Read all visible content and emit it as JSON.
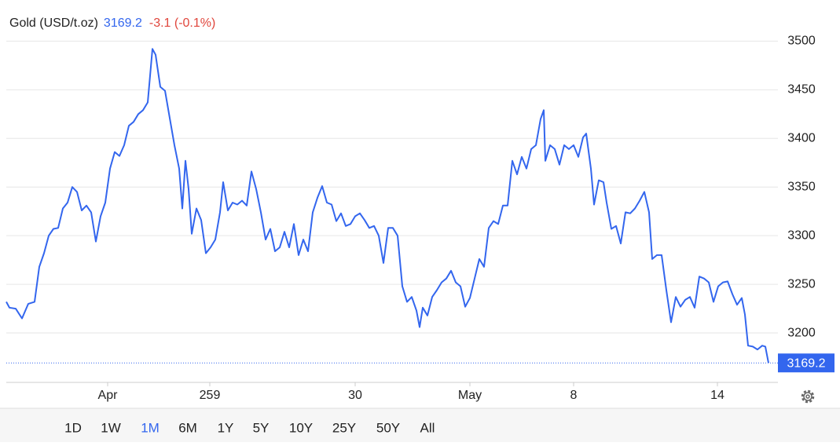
{
  "chart_data": {
    "type": "line",
    "title": "Gold (USD/t.oz)",
    "price": 3169.2,
    "change": "-3.1 (-0.1%)",
    "price_color": "#3366ee",
    "change_color": "#e0463c",
    "x": [
      0,
      4,
      12,
      20,
      28,
      36,
      42,
      48,
      54,
      60,
      66,
      72,
      78,
      84,
      90,
      96,
      102,
      108,
      114,
      120,
      126,
      132,
      138,
      144,
      150,
      156,
      162,
      168,
      174,
      180,
      186,
      190,
      196,
      202,
      208,
      214,
      220,
      224,
      228,
      232,
      236,
      242,
      248,
      254,
      260,
      266,
      272,
      276,
      282,
      288,
      294,
      300,
      306,
      312,
      318,
      324,
      330,
      336,
      342,
      348,
      354,
      360,
      366,
      372,
      378,
      384,
      390,
      396,
      402,
      408,
      414,
      420,
      426,
      432,
      438,
      444,
      450,
      456,
      462,
      468,
      474,
      480,
      486,
      492,
      498,
      504,
      510,
      516,
      522,
      526,
      530,
      536,
      542,
      548,
      554,
      560,
      566,
      572,
      578,
      584,
      590,
      596,
      602,
      608,
      614,
      620,
      626,
      632,
      638,
      644,
      650,
      656,
      662,
      668,
      674,
      680,
      684,
      686,
      692,
      698,
      704,
      710,
      716,
      722,
      728,
      734,
      738,
      744,
      748,
      754,
      760,
      764,
      770,
      776,
      782,
      788,
      794,
      800,
      806,
      812,
      818,
      822,
      828,
      834,
      840,
      846,
      852,
      858,
      864,
      870,
      876,
      882,
      888,
      894,
      900,
      906,
      912,
      918,
      924,
      930,
      936,
      940,
      944,
      950,
      956,
      962,
      966,
      970
    ],
    "series": [
      {
        "name": "Gold",
        "color": "#3366ee",
        "values": [
          3232,
          3226,
          3225,
          3215,
          3230,
          3232,
          3268,
          3282,
          3300,
          3307,
          3308,
          3328,
          3334,
          3350,
          3345,
          3326,
          3331,
          3324,
          3294,
          3320,
          3334,
          3369,
          3386,
          3382,
          3393,
          3413,
          3417,
          3425,
          3429,
          3437,
          3492,
          3486,
          3453,
          3449,
          3421,
          3393,
          3369,
          3328,
          3377,
          3348,
          3302,
          3328,
          3316,
          3282,
          3288,
          3296,
          3324,
          3355,
          3326,
          3334,
          3332,
          3336,
          3331,
          3366,
          3348,
          3324,
          3296,
          3307,
          3284,
          3288,
          3304,
          3288,
          3312,
          3280,
          3296,
          3284,
          3324,
          3339,
          3351,
          3334,
          3332,
          3315,
          3323,
          3310,
          3312,
          3320,
          3323,
          3316,
          3308,
          3310,
          3300,
          3272,
          3308,
          3308,
          3300,
          3248,
          3232,
          3237,
          3223,
          3206,
          3226,
          3218,
          3237,
          3244,
          3252,
          3256,
          3264,
          3252,
          3248,
          3227,
          3236,
          3256,
          3276,
          3268,
          3308,
          3315,
          3312,
          3331,
          3331,
          3377,
          3363,
          3381,
          3369,
          3389,
          3393,
          3420,
          3429,
          3377,
          3393,
          3389,
          3373,
          3393,
          3389,
          3393,
          3381,
          3401,
          3405,
          3369,
          3332,
          3357,
          3355,
          3334,
          3307,
          3310,
          3292,
          3324,
          3323,
          3328,
          3336,
          3345,
          3324,
          3276,
          3280,
          3280,
          3244,
          3211,
          3237,
          3227,
          3234,
          3237,
          3226,
          3258,
          3256,
          3252,
          3232,
          3248,
          3252,
          3253,
          3240,
          3229,
          3236,
          3219,
          3187,
          3186,
          3183,
          3187,
          3186,
          3169.2
        ]
      }
    ],
    "xlim": [
      0,
      982
    ],
    "xticks": [
      {
        "value": 129,
        "label": "Apr"
      },
      259,
      {
        "value": 444,
        "label": "30"
      },
      {
        "value": 590,
        "label": "May"
      },
      {
        "value": 722,
        "label": "8"
      },
      {
        "value": 905,
        "label": "14"
      }
    ],
    "ylim": [
      3150,
      3510
    ],
    "yticks": [
      3200,
      3250,
      3300,
      3350,
      3400,
      3450,
      3500
    ],
    "grid": true,
    "ranges": [
      "1D",
      "1W",
      "1M",
      "6M",
      "1Y",
      "5Y",
      "10Y",
      "25Y",
      "50Y",
      "All"
    ],
    "active_range": "1M",
    "active_color": "#3366ee"
  }
}
